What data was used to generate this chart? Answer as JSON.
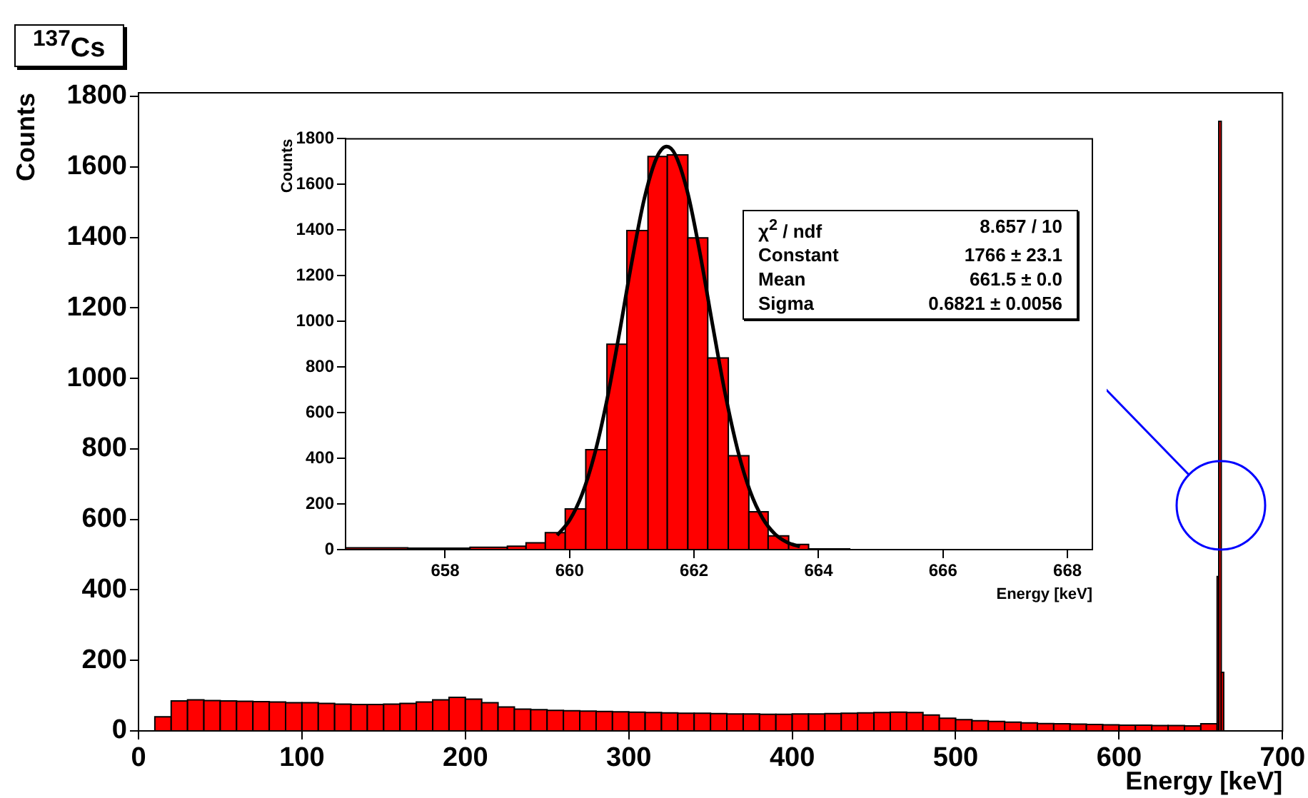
{
  "chart_data": [
    {
      "type": "histogram",
      "title": "$^{137}$Cs",
      "xlabel": "Energy [keV]",
      "ylabel": "Counts",
      "bins": [
        10,
        20,
        30,
        40,
        50,
        60,
        70,
        80,
        90,
        100,
        110,
        120,
        130,
        140,
        150,
        160,
        170,
        180,
        190,
        200,
        210,
        220,
        230,
        240,
        250,
        260,
        270,
        280,
        290,
        300,
        310,
        320,
        330,
        340,
        350,
        360,
        370,
        380,
        390,
        400,
        410,
        420,
        430,
        440,
        450,
        460,
        470,
        480,
        490,
        500,
        510,
        520,
        530,
        540,
        550,
        560,
        570,
        580,
        590,
        600,
        610,
        620,
        630,
        640,
        650,
        660,
        661,
        662.5,
        664
      ],
      "values": [
        40,
        85,
        88,
        86,
        85,
        84,
        83,
        82,
        80,
        80,
        78,
        76,
        75,
        75,
        76,
        78,
        82,
        88,
        95,
        90,
        80,
        68,
        62,
        60,
        58,
        57,
        56,
        55,
        54,
        53,
        52,
        51,
        50,
        50,
        49,
        48,
        48,
        47,
        47,
        48,
        48,
        49,
        50,
        51,
        52,
        53,
        52,
        45,
        36,
        32,
        29,
        27,
        25,
        23,
        21,
        20,
        19,
        18,
        17,
        16,
        16,
        15,
        15,
        14,
        20,
        438,
        1729,
        166
      ],
      "color": "#ff0000",
      "xlim": [
        0,
        700
      ],
      "xticks": [
        0,
        100,
        200,
        300,
        400,
        500,
        600,
        700
      ],
      "ylim": [
        0,
        1810
      ],
      "yticks": [
        0,
        200,
        400,
        600,
        800,
        1000,
        1200,
        1400,
        1600,
        1800
      ],
      "grid": false,
      "legend": false
    },
    {
      "type": "histogram",
      "xlabel": "Energy [keV]",
      "ylabel": "Counts",
      "bins": [
        656.4,
        657.4,
        658.4,
        659.0,
        659.3,
        659.61,
        659.93,
        660.26,
        660.6,
        660.92,
        661.26,
        661.57,
        661.9,
        662.22,
        662.55,
        662.88,
        663.19,
        663.52,
        663.84,
        664.5
      ],
      "values": [
        8,
        6,
        10,
        15,
        30,
        74,
        178,
        438,
        900,
        1398,
        1722,
        1729,
        1366,
        840,
        411,
        166,
        60,
        23,
        3
      ],
      "color": "#ff0000",
      "series": [
        {
          "type": "line",
          "color": "#000000",
          "x": [
            659.8,
            660.0,
            660.2,
            660.4,
            660.6,
            660.8,
            661.0,
            661.2,
            661.4,
            661.56,
            661.7,
            661.9,
            662.1,
            662.3,
            662.5,
            662.7,
            662.9,
            663.1,
            663.3,
            663.5,
            663.7
          ],
          "values": [
            63,
            129,
            242,
            416,
            655,
            949,
            1261,
            1537,
            1718,
            1766,
            1729,
            1560,
            1291,
            980,
            683,
            437,
            256,
            138,
            68,
            31,
            13
          ]
        }
      ],
      "xlim": [
        656.4,
        668.4
      ],
      "xticks": [
        658,
        660,
        662,
        664,
        666,
        668
      ],
      "ylim": [
        0,
        1800
      ],
      "yticks": [
        0,
        200,
        400,
        600,
        800,
        1000,
        1200,
        1400,
        1600,
        1800
      ],
      "annotations": [
        "χ$^{2}$ / ndf",
        "8.657 / 10",
        "Constant",
        "1766 ± 23.1",
        "Mean",
        "661.5 ± 0.0",
        "Sigma",
        "0.6821 ± 0.0056"
      ],
      "grid": false,
      "legend": false
    }
  ]
}
